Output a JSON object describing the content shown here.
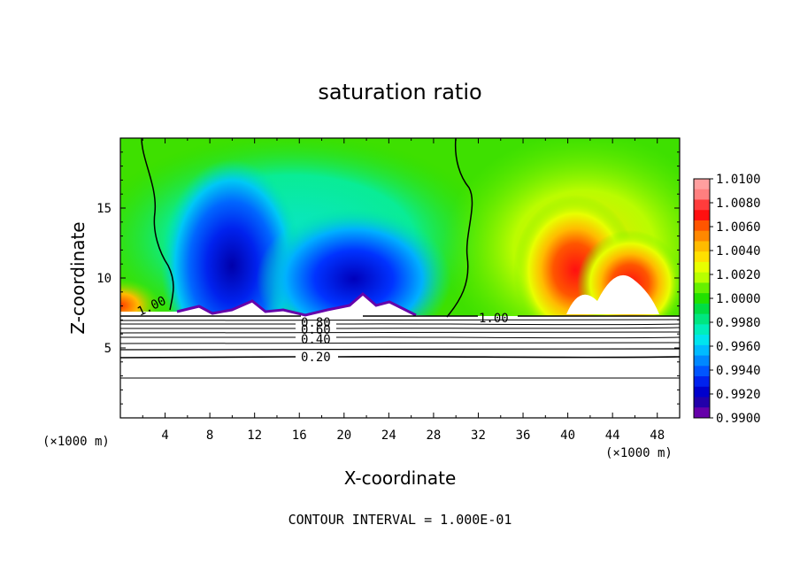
{
  "chart_data": {
    "type": "heatmap",
    "title": "saturation ratio",
    "xlabel": "X-coordinate",
    "ylabel": "Z-coordinate",
    "x_unit_left": "(×1000 m)",
    "x_unit_right": "(×1000 m)",
    "xlim": [
      0,
      50
    ],
    "ylim": [
      0,
      20
    ],
    "x_ticks": [
      "4",
      "8",
      "12",
      "16",
      "20",
      "24",
      "28",
      "32",
      "36",
      "40",
      "44",
      "48"
    ],
    "y_ticks": [
      "5",
      "10",
      "15"
    ],
    "footer": "CONTOUR INTERVAL = 1.000E-01",
    "colorbar": {
      "labels": [
        "1.0100",
        "1.0080",
        "1.0060",
        "1.0040",
        "1.0020",
        "1.0000",
        "0.9980",
        "0.9960",
        "0.9940",
        "0.9920",
        "0.9900"
      ],
      "colors": [
        "#ff9f9f",
        "#ff7f7f",
        "#ff3c3c",
        "#ff1010",
        "#ff5500",
        "#ff8800",
        "#ffbb00",
        "#ffe000",
        "#e8ff00",
        "#b8ff00",
        "#66f000",
        "#22e000",
        "#00dd44",
        "#00e680",
        "#00eebb",
        "#00e5ee",
        "#00bbff",
        "#0088ff",
        "#0055ff",
        "#0022ee",
        "#0000cc",
        "#2200aa",
        "#6600aa"
      ]
    },
    "contour_labels": [
      "1.00",
      "1.00",
      "0.80",
      "0.60",
      "0.40",
      "0.20"
    ],
    "grid": false
  }
}
